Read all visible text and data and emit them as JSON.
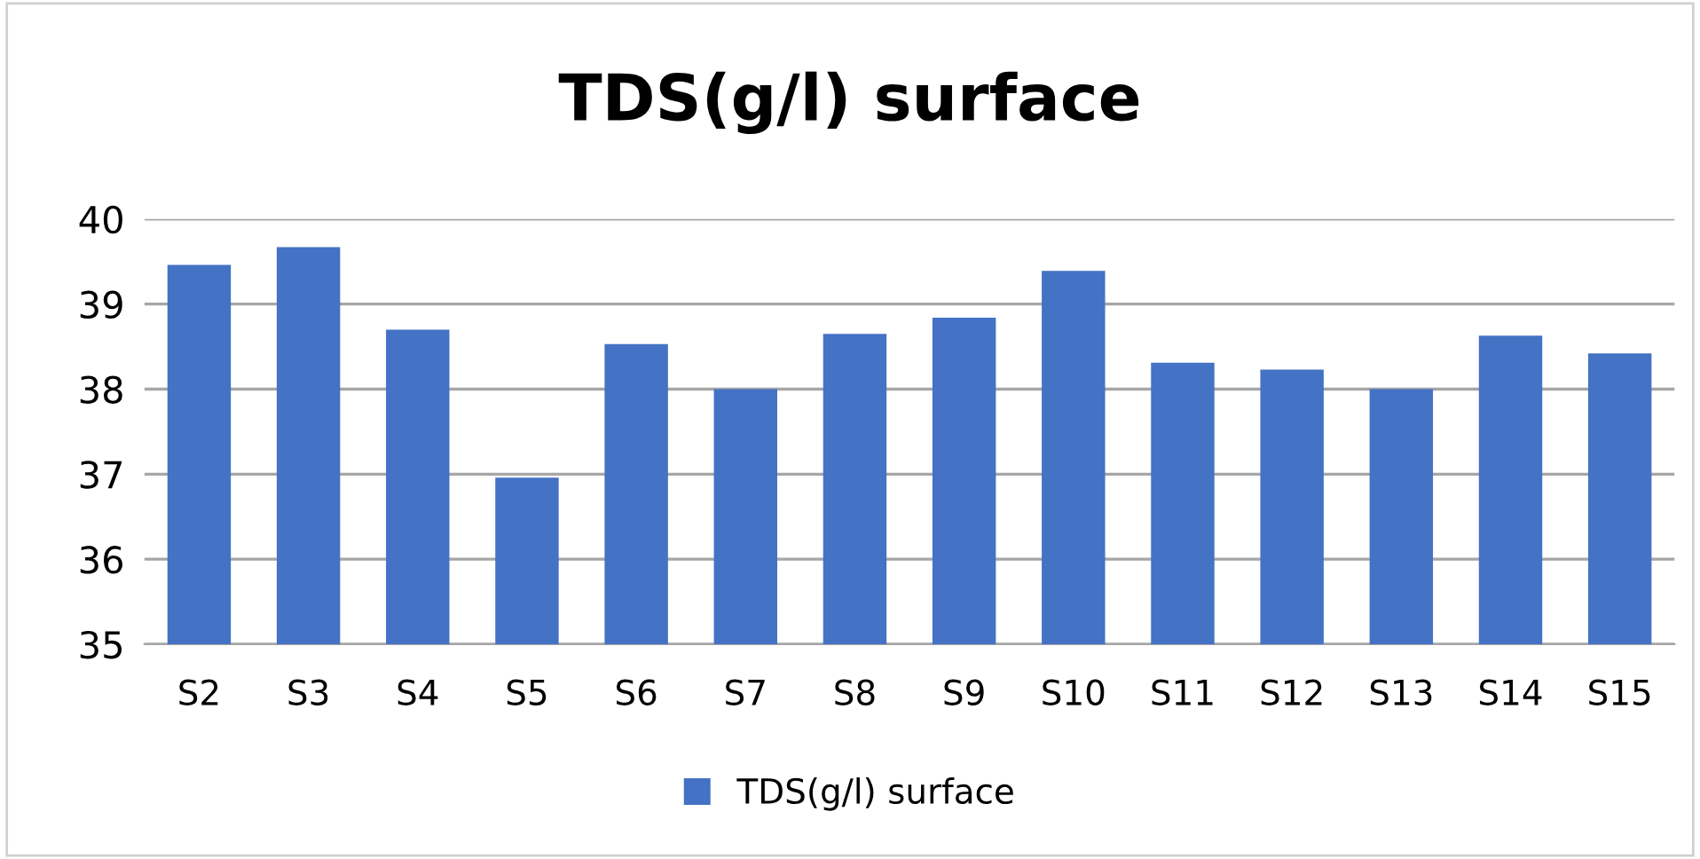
{
  "chart_data": {
    "type": "bar",
    "title": "TDS(g/l) surface",
    "categories": [
      "S2",
      "S3",
      "S4",
      "S5",
      "S6",
      "S7",
      "S8",
      "S9",
      "S10",
      "S11",
      "S12",
      "S13",
      "S14",
      "S15"
    ],
    "series": [
      {
        "name": "TDS(g/l) surface",
        "color": "#4472c4",
        "values": [
          39.46,
          39.67,
          38.7,
          36.96,
          38.53,
          38.0,
          38.65,
          38.84,
          39.39,
          38.31,
          38.23,
          38.0,
          38.63,
          38.42
        ]
      }
    ],
    "ylim": [
      35,
      40
    ],
    "yticks": [
      35,
      36,
      37,
      38,
      39,
      40
    ],
    "grid": "y",
    "legend": "bottom"
  }
}
